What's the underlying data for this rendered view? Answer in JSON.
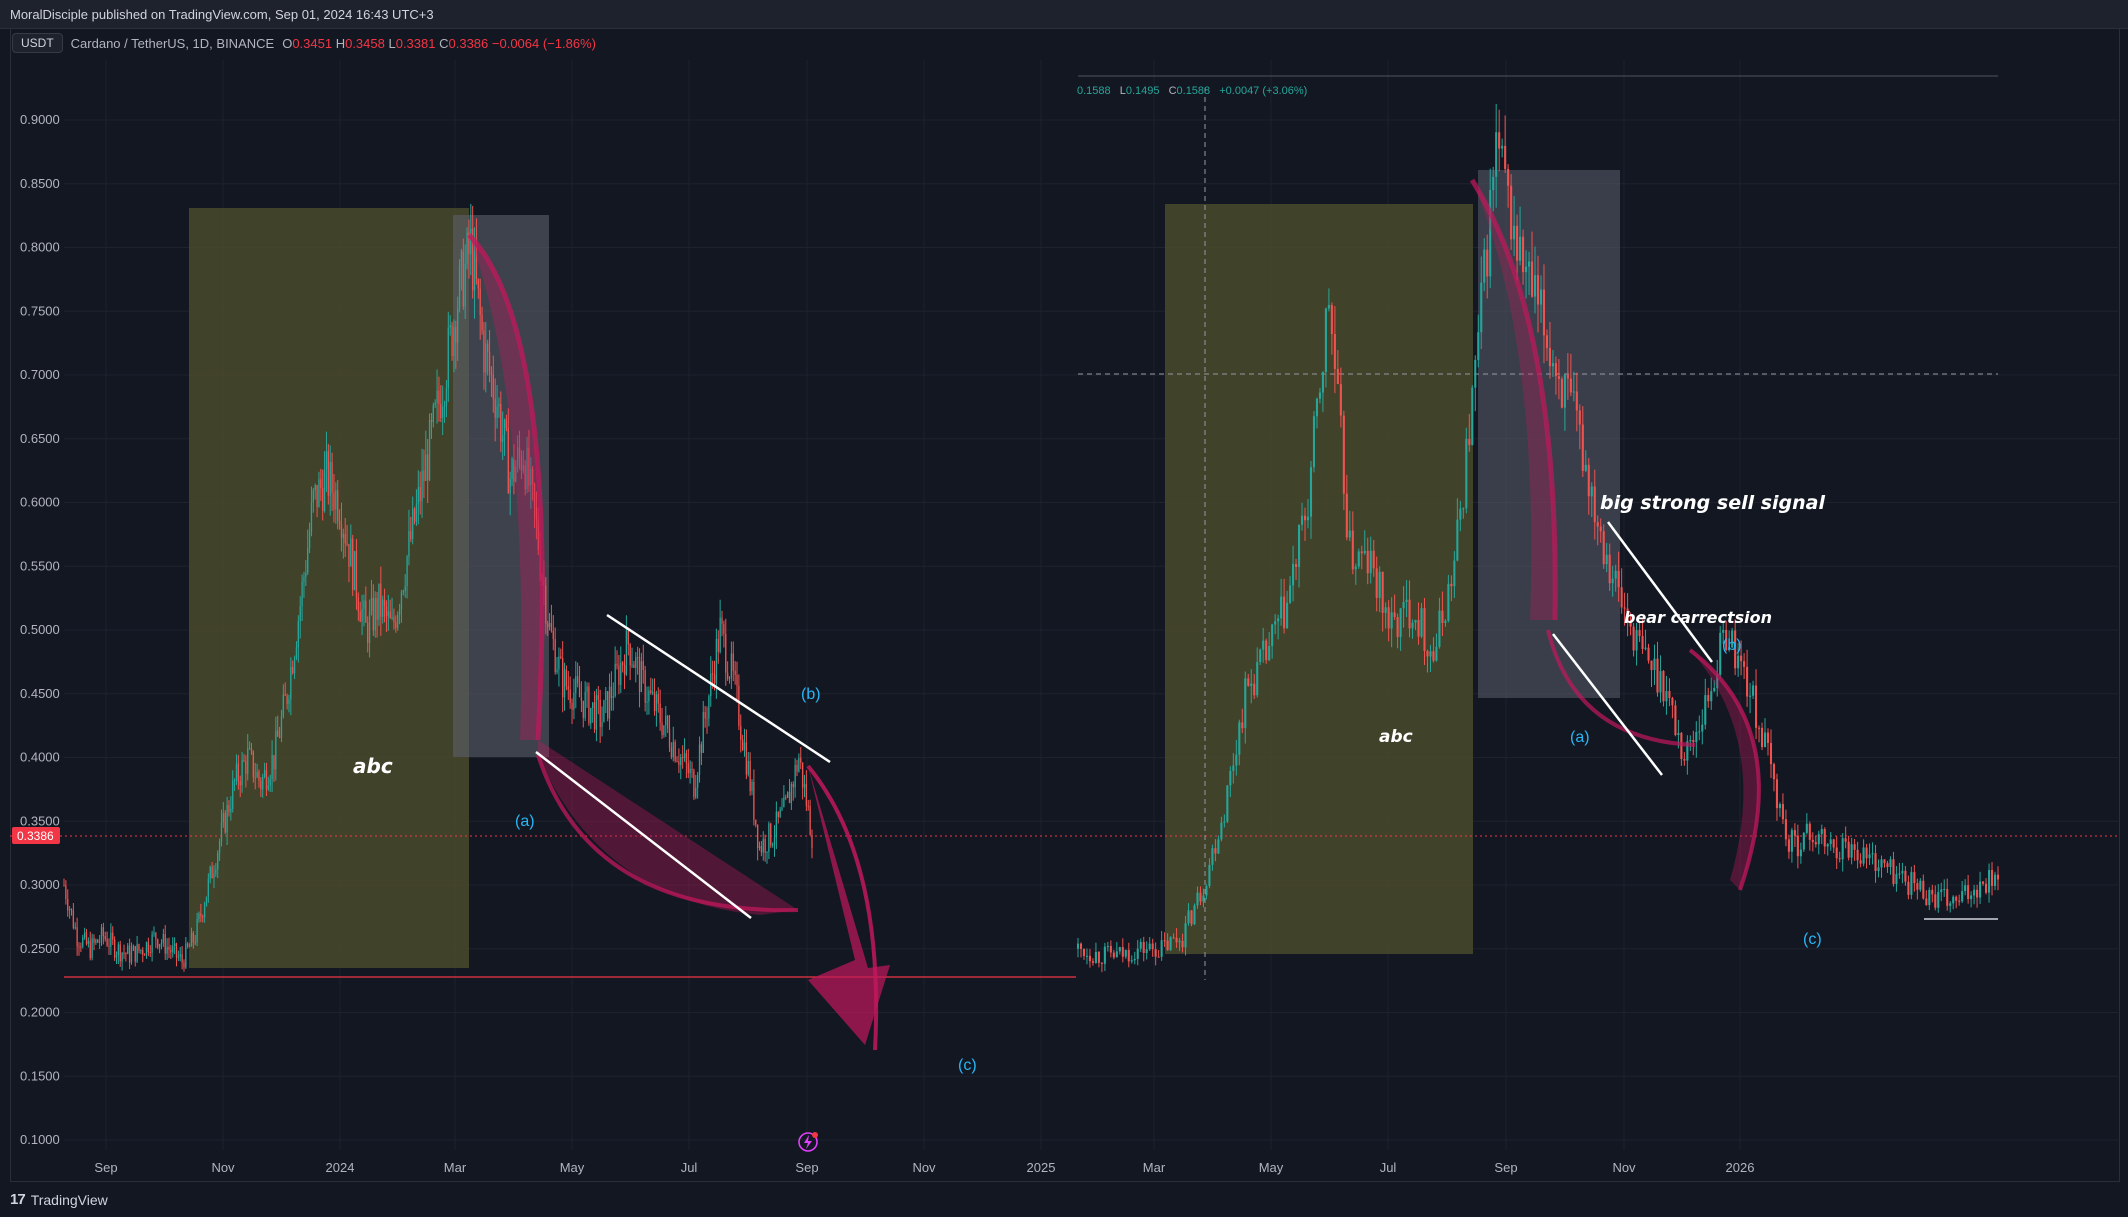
{
  "header": {
    "publisher": "MoralDisciple published on TradingView.com, Sep 01, 2024 16:43 UTC+3"
  },
  "legend": {
    "currency": "USDT",
    "symbol": "Cardano / TetherUS, 1D, BINANCE",
    "o_label": "O",
    "o": "0.3451",
    "h_label": "H",
    "h": "0.3458",
    "l_label": "L",
    "l": "0.3381",
    "c_label": "C",
    "c": "0.3386",
    "change": "−0.0064 (−1.86%)"
  },
  "overlay_legend": {
    "o_label": "0.1588",
    "l_label": "L",
    "l": "0.1495",
    "c_label": "C",
    "c": "0.1588",
    "change": "+0.0047 (+3.06%)"
  },
  "price_label": "0.3386",
  "footer": {
    "brand": "TradingView"
  },
  "colors": {
    "background": "#131722",
    "up": "#26a69a",
    "down": "#ef5350",
    "highlight": "#f23645",
    "wave_label": "#29b6f6",
    "yellow_box": "#4a4a2c",
    "gray_box": "#5b5f6b",
    "arrow": "#c2185b"
  },
  "annotations": {
    "abc_left": "abc",
    "abc_right": "abc",
    "a_left": "(a)",
    "b_left": "(b)",
    "c_left": "(c)",
    "a_right": "(a)",
    "b_right": "(b)",
    "c_right": "(c)",
    "sell_signal": "big strong sell signal",
    "bear_correction": "bear carrectsion"
  },
  "chart_data": {
    "type": "candlestick",
    "title": "Cardano / TetherUS, 1D, BINANCE",
    "ylim": [
      0.08,
      0.94
    ],
    "y_ticks": [
      "0.9000",
      "0.8500",
      "0.8000",
      "0.7500",
      "0.7000",
      "0.6500",
      "0.6000",
      "0.5500",
      "0.5000",
      "0.4500",
      "0.4000",
      "0.3500",
      "0.3000",
      "0.2500",
      "0.2000",
      "0.1500",
      "0.1000"
    ],
    "x_ticks": [
      "Sep",
      "Nov",
      "2024",
      "Mar",
      "May",
      "Jul",
      "Sep",
      "Nov",
      "2025",
      "Mar",
      "May",
      "Jul",
      "Sep",
      "Nov",
      "2026"
    ],
    "current_price": 0.3386,
    "support_line": 0.228,
    "left_series_closes": [
      0.3,
      0.26,
      0.25,
      0.26,
      0.25,
      0.245,
      0.25,
      0.26,
      0.25,
      0.24,
      0.26,
      0.3,
      0.34,
      0.38,
      0.4,
      0.38,
      0.4,
      0.45,
      0.52,
      0.6,
      0.62,
      0.6,
      0.55,
      0.5,
      0.52,
      0.5,
      0.55,
      0.6,
      0.65,
      0.7,
      0.76,
      0.8,
      0.72,
      0.68,
      0.62,
      0.64,
      0.58,
      0.5,
      0.46,
      0.45,
      0.44,
      0.43,
      0.46,
      0.49,
      0.46,
      0.44,
      0.42,
      0.4,
      0.38,
      0.44,
      0.5,
      0.46,
      0.4,
      0.33,
      0.34,
      0.36,
      0.4,
      0.34
    ],
    "right_series_closes": [
      0.25,
      0.245,
      0.245,
      0.25,
      0.25,
      0.26,
      0.3,
      0.36,
      0.45,
      0.48,
      0.52,
      0.6,
      0.76,
      0.56,
      0.55,
      0.5,
      0.52,
      0.48,
      0.55,
      0.7,
      0.88,
      0.8,
      0.75,
      0.7,
      0.65,
      0.58,
      0.52,
      0.48,
      0.46,
      0.4,
      0.44,
      0.5,
      0.46,
      0.4,
      0.33,
      0.34,
      0.33,
      0.33,
      0.32,
      0.31,
      0.3,
      0.29,
      0.285,
      0.3,
      0.31
    ]
  }
}
